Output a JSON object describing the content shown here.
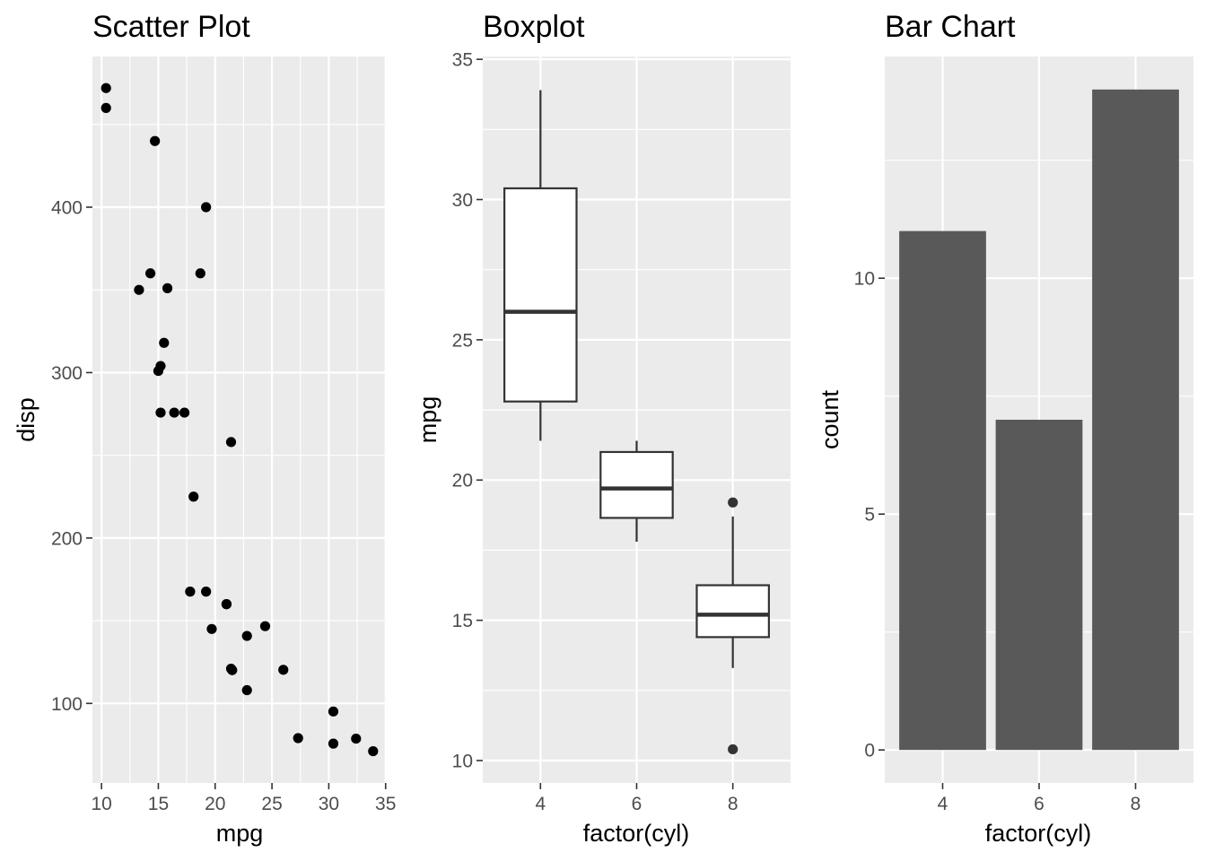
{
  "colors": {
    "panel_bg": "#ebebeb",
    "grid": "#ffffff",
    "point": "#000000",
    "box_line": "#333333",
    "box_fill": "#ffffff",
    "bar_fill": "#595959",
    "tick": "#333333",
    "tick_label": "#4d4d4d"
  },
  "chart_data": [
    {
      "type": "scatter",
      "title": "Scatter Plot",
      "xlabel": "mpg",
      "ylabel": "disp",
      "xlim": [
        9.2,
        35.1
      ],
      "ylim": [
        51.9,
        491.1
      ],
      "xticks": [
        10,
        15,
        20,
        25,
        30,
        35
      ],
      "xtick_labels": [
        "10",
        "15",
        "20",
        "25",
        "30",
        "35"
      ],
      "yticks": [
        100,
        200,
        300,
        400
      ],
      "ytick_labels": [
        "100",
        "200",
        "300",
        "400"
      ],
      "grid": true,
      "points": [
        {
          "x": 21.0,
          "y": 160.0
        },
        {
          "x": 21.0,
          "y": 160.0
        },
        {
          "x": 22.8,
          "y": 108.0
        },
        {
          "x": 21.4,
          "y": 258.0
        },
        {
          "x": 18.7,
          "y": 360.0
        },
        {
          "x": 18.1,
          "y": 225.0
        },
        {
          "x": 14.3,
          "y": 360.0
        },
        {
          "x": 24.4,
          "y": 146.7
        },
        {
          "x": 22.8,
          "y": 140.8
        },
        {
          "x": 19.2,
          "y": 167.6
        },
        {
          "x": 17.8,
          "y": 167.6
        },
        {
          "x": 16.4,
          "y": 275.8
        },
        {
          "x": 17.3,
          "y": 275.8
        },
        {
          "x": 15.2,
          "y": 275.8
        },
        {
          "x": 10.4,
          "y": 472.0
        },
        {
          "x": 10.4,
          "y": 460.0
        },
        {
          "x": 14.7,
          "y": 440.0
        },
        {
          "x": 32.4,
          "y": 78.7
        },
        {
          "x": 30.4,
          "y": 75.7
        },
        {
          "x": 33.9,
          "y": 71.1
        },
        {
          "x": 21.5,
          "y": 120.1
        },
        {
          "x": 15.5,
          "y": 318.0
        },
        {
          "x": 15.2,
          "y": 304.0
        },
        {
          "x": 13.3,
          "y": 350.0
        },
        {
          "x": 19.2,
          "y": 400.0
        },
        {
          "x": 27.3,
          "y": 79.0
        },
        {
          "x": 26.0,
          "y": 120.3
        },
        {
          "x": 30.4,
          "y": 95.1
        },
        {
          "x": 15.8,
          "y": 351.0
        },
        {
          "x": 19.7,
          "y": 145.0
        },
        {
          "x": 15.0,
          "y": 301.0
        },
        {
          "x": 21.4,
          "y": 121.0
        }
      ]
    },
    {
      "type": "box",
      "title": "Boxplot",
      "xlabel": "factor(cyl)",
      "ylabel": "mpg",
      "categories": [
        "4",
        "6",
        "8"
      ],
      "ylim": [
        9.2,
        35.1
      ],
      "yticks": [
        10,
        15,
        20,
        25,
        30,
        35
      ],
      "ytick_labels": [
        "10",
        "15",
        "20",
        "25",
        "30",
        "35"
      ],
      "grid": true,
      "boxes": [
        {
          "category": "4",
          "whisker_low": 21.4,
          "q1": 22.8,
          "median": 26.0,
          "q3": 30.4,
          "whisker_high": 33.9,
          "outliers": []
        },
        {
          "category": "6",
          "whisker_low": 17.8,
          "q1": 18.65,
          "median": 19.7,
          "q3": 21.0,
          "whisker_high": 21.4,
          "outliers": []
        },
        {
          "category": "8",
          "whisker_low": 13.3,
          "q1": 14.4,
          "median": 15.2,
          "q3": 16.25,
          "whisker_high": 18.7,
          "outliers": [
            10.4,
            19.2
          ]
        }
      ]
    },
    {
      "type": "bar",
      "title": "Bar Chart",
      "xlabel": "factor(cyl)",
      "ylabel": "count",
      "categories": [
        "4",
        "6",
        "8"
      ],
      "values": [
        11,
        7,
        14
      ],
      "ylim": [
        -0.7,
        14.7
      ],
      "yticks": [
        0,
        5,
        10
      ],
      "ytick_labels": [
        "0",
        "5",
        "10"
      ],
      "grid": true
    }
  ]
}
